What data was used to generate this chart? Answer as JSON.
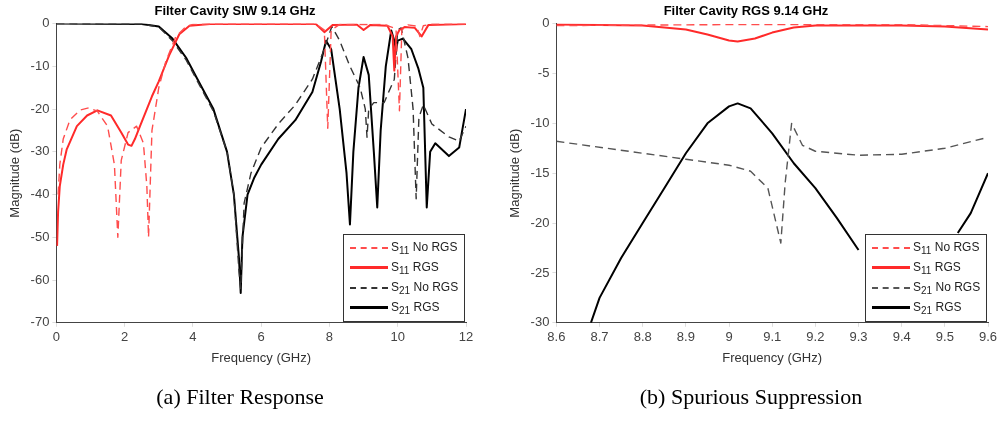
{
  "chart_data": [
    {
      "type": "line",
      "title": "Filter Cavity SIW 9.14 GHz",
      "xlabel": "Frequency (GHz)",
      "ylabel": "Magnitude (dB)",
      "xlim": [
        0,
        12
      ],
      "xticks": [
        0,
        2,
        4,
        6,
        8,
        10,
        12
      ],
      "ylim": [
        -70,
        0
      ],
      "yticks": [
        -70,
        -60,
        -50,
        -40,
        -30,
        -20,
        -10,
        0
      ],
      "grid": false,
      "legend": "bottom right",
      "marker": "none",
      "annotations": [
        "(a) Filter Response"
      ],
      "series": [
        {
          "name": "S$_{11}$ No RGS",
          "color": "#ff4d4d",
          "line_style": "dashed",
          "x": [
            0.05,
            0.1,
            0.2,
            0.4,
            0.7,
            0.95,
            1.2,
            1.5,
            1.7,
            1.8,
            1.9,
            2.1,
            2.35,
            2.55,
            2.65,
            2.7,
            2.8,
            3.0,
            3.2,
            3.5,
            3.8,
            4.0,
            4.5,
            7.6,
            7.85,
            7.95,
            8.05,
            8.3,
            9.6,
            9.95,
            10.05,
            10.12,
            10.3,
            10.55,
            10.65,
            10.75,
            11.0,
            12.0
          ],
          "values": [
            -40,
            -33,
            -27,
            -22.5,
            -20.2,
            -19.7,
            -20.5,
            -24,
            -33,
            -50,
            -32,
            -25.5,
            -24,
            -28,
            -38,
            -50,
            -25,
            -15,
            -9,
            -3,
            -0.7,
            -0.2,
            -0.1,
            -0.1,
            -1.5,
            -24.5,
            -1.5,
            -0.2,
            -0.2,
            -1.2,
            -20.4,
            -1.5,
            -0.3,
            -0.6,
            -3,
            -0.5,
            -0.1,
            -0.1
          ]
        },
        {
          "name": "S$_{11}$ RGS",
          "color": "#ff2a2a",
          "line_style": "solid",
          "x": [
            0.02,
            0.05,
            0.1,
            0.2,
            0.3,
            0.6,
            0.9,
            1.2,
            1.6,
            1.9,
            2.1,
            2.2,
            2.3,
            2.45,
            2.6,
            2.8,
            3.0,
            3.3,
            3.6,
            3.9,
            4.5,
            7.6,
            7.85,
            8.1,
            8.8,
            9.0,
            9.2,
            9.7,
            9.85,
            9.9,
            9.95,
            10.05,
            10.2,
            10.5,
            10.7,
            10.9,
            12.0
          ],
          "values": [
            -52,
            -44,
            -38,
            -33,
            -29.5,
            -24,
            -21.5,
            -20.3,
            -21.5,
            -25.5,
            -28.3,
            -28.6,
            -27,
            -24,
            -21,
            -17,
            -13.5,
            -7.5,
            -2.5,
            -0.5,
            -0.1,
            -0.1,
            -2,
            -0.3,
            -0.2,
            -1.5,
            -0.3,
            -0.5,
            -3,
            -11,
            -3,
            -1.5,
            -0.8,
            -1,
            -3,
            -0.3,
            -0.1
          ]
        },
        {
          "name": "S$_{21}$ No RGS",
          "color": "#333333",
          "line_style": "dashed",
          "x": [
            0,
            2.5,
            3.0,
            3.4,
            3.8,
            4.2,
            4.6,
            5.0,
            5.2,
            5.35,
            5.4,
            5.5,
            5.7,
            6.0,
            6.5,
            7.0,
            7.5,
            7.8,
            8.07,
            8.3,
            8.6,
            8.9,
            9.05,
            9.1,
            9.15,
            9.3,
            9.6,
            9.9,
            10.0,
            10.1,
            10.3,
            10.45,
            10.54,
            10.62,
            10.75,
            11.0,
            11.5,
            11.8,
            12.0
          ],
          "values": [
            0,
            -0.1,
            -0.8,
            -4,
            -8.5,
            -14.5,
            -20.5,
            -30,
            -40,
            -58,
            -62,
            -42,
            -35,
            -29,
            -23.5,
            -19,
            -13,
            -7,
            -0.7,
            -4,
            -10,
            -15,
            -20,
            -26.6,
            -20,
            -18.5,
            -18.5,
            -13,
            -1.5,
            -1,
            -8,
            -20,
            -41,
            -22,
            -19,
            -23.5,
            -26.5,
            -27.5,
            -24
          ]
        },
        {
          "name": "S$_{21}$ RGS",
          "color": "#000000",
          "line_style": "solid",
          "x": [
            0,
            2.5,
            3.0,
            3.4,
            3.8,
            4.2,
            4.6,
            5.0,
            5.2,
            5.35,
            5.4,
            5.45,
            5.6,
            5.8,
            6.0,
            6.5,
            7.0,
            7.5,
            7.75,
            7.9,
            8.05,
            8.3,
            8.5,
            8.6,
            8.7,
            8.85,
            9.0,
            9.15,
            9.3,
            9.4,
            9.5,
            9.65,
            9.81,
            9.9,
            9.95,
            10.0,
            10.15,
            10.4,
            10.6,
            10.75,
            10.85,
            10.95,
            11.1,
            11.5,
            11.8,
            12.0
          ],
          "values": [
            0,
            -0.1,
            -0.7,
            -3.5,
            -8,
            -14,
            -20,
            -30,
            -40,
            -55,
            -63,
            -50,
            -40,
            -36,
            -33,
            -27,
            -22.6,
            -16,
            -9,
            -4,
            -6,
            -20,
            -35,
            -47,
            -30,
            -15,
            -7.8,
            -12,
            -30,
            -43,
            -25,
            -10,
            -1.6,
            -4,
            -6.3,
            -4,
            -3.5,
            -6,
            -10.4,
            -15,
            -43,
            -30,
            -28,
            -31,
            -29,
            -20
          ]
        }
      ]
    },
    {
      "type": "line",
      "title": "Filter Cavity RGS 9.14 GHz",
      "xlabel": "Frequency (GHz)",
      "ylabel": "Magnitude (dB)",
      "xlim": [
        8.6,
        9.6
      ],
      "xticks": [
        8.6,
        8.7,
        8.8,
        8.9,
        9,
        9.1,
        9.2,
        9.3,
        9.4,
        9.5,
        9.6
      ],
      "ylim": [
        -30,
        0
      ],
      "yticks": [
        -30,
        -25,
        -20,
        -15,
        -10,
        -5,
        0
      ],
      "grid": false,
      "legend": "bottom right",
      "marker": "none",
      "annotations": [
        "(b) Spurious Suppression"
      ],
      "series": [
        {
          "name": "S$_{11}$ No RGS",
          "color": "#ff4d4d",
          "line_style": "dashed",
          "x": [
            8.6,
            9.0,
            9.4,
            9.6
          ],
          "values": [
            -0.2,
            -0.1,
            -0.1,
            -0.3
          ]
        },
        {
          "name": "S$_{11}$ RGS",
          "color": "#ff2a2a",
          "line_style": "solid",
          "x": [
            8.6,
            8.8,
            8.9,
            8.95,
            9.0,
            9.02,
            9.06,
            9.1,
            9.15,
            9.2,
            9.4,
            9.5,
            9.6
          ],
          "values": [
            -0.1,
            -0.2,
            -0.6,
            -1.1,
            -1.7,
            -1.8,
            -1.5,
            -0.9,
            -0.4,
            -0.2,
            -0.2,
            -0.3,
            -0.6
          ]
        },
        {
          "name": "S$_{21}$ No RGS",
          "color": "#555555",
          "line_style": "dashed",
          "x": [
            8.6,
            8.8,
            8.9,
            9.0,
            9.05,
            9.09,
            9.12,
            9.13,
            9.145,
            9.17,
            9.2,
            9.3,
            9.4,
            9.5,
            9.6
          ],
          "values": [
            -11.8,
            -13,
            -13.6,
            -14.2,
            -14.8,
            -16.5,
            -22,
            -16,
            -10,
            -12.2,
            -12.8,
            -13.2,
            -13.1,
            -12.5,
            -11.4
          ]
        },
        {
          "name": "S$_{21}$ RGS",
          "color": "#000000",
          "line_style": "solid",
          "x": [
            8.68,
            8.7,
            8.75,
            8.8,
            8.85,
            8.9,
            8.95,
            9.0,
            9.02,
            9.05,
            9.1,
            9.15,
            9.2,
            9.25,
            9.3,
            9.4,
            9.53,
            9.56,
            9.6
          ],
          "values": [
            -30,
            -27.5,
            -23.5,
            -20,
            -16.5,
            -13,
            -10,
            -8.3,
            -8,
            -8.5,
            -11,
            -14,
            -16.5,
            -19.5,
            -22.7,
            null,
            -21,
            -19,
            -15
          ]
        }
      ]
    }
  ]
}
